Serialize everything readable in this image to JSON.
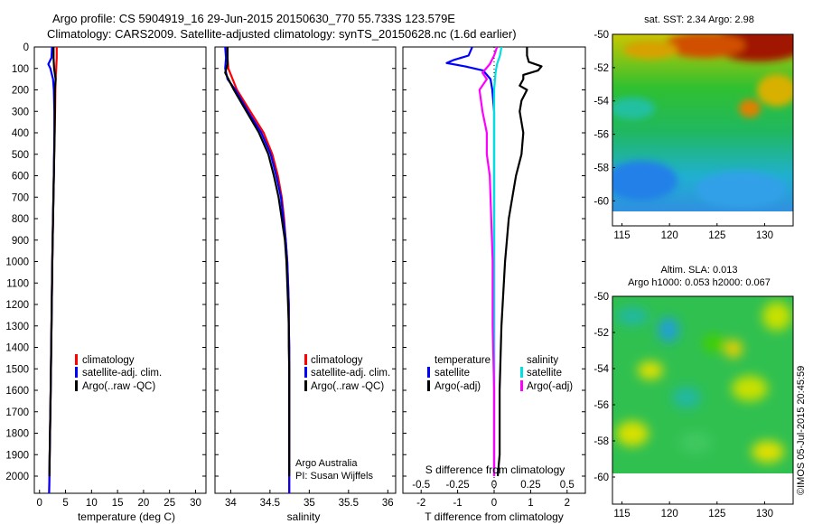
{
  "header": {
    "title_line1": "Argo profile: CS 5904919_16 29-Jun-2015 20150630_770 55.733S 123.579E",
    "title_line2": "Climatology: CARS2009. Satellite-adjusted climatology: synTS_20150628.nc (1.6d earlier)"
  },
  "credits": {
    "line1": "Argo Australia",
    "line2": "PI: Susan Wijffels",
    "stamp": "©IMOS 05-Jul-2015 20:45:59"
  },
  "colors": {
    "climatology": "#ff0000",
    "satellite": "#0000ff",
    "argo": "#000000",
    "satellite_salinity": "#00e0e0",
    "argo_salinity_diff": "#ff00ff"
  },
  "chart_data": [
    {
      "id": "temperature",
      "type": "line",
      "xlabel": "temperature (deg C)",
      "ylabel": "",
      "xlim": [
        -1,
        32
      ],
      "ylim": [
        2080,
        0
      ],
      "xticks": [
        0,
        5,
        10,
        15,
        20,
        25,
        30
      ],
      "yticks": [
        0,
        100,
        200,
        300,
        400,
        500,
        600,
        700,
        800,
        900,
        1000,
        1100,
        1200,
        1300,
        1400,
        1500,
        1600,
        1700,
        1800,
        1900,
        2000
      ],
      "legend": [
        "climatology",
        "satellite-adj. clim.",
        "Argo(..raw -QC)"
      ],
      "series": [
        {
          "name": "climatology",
          "color": "#ff0000",
          "depth": [
            0,
            50,
            100,
            150,
            200,
            300,
            400,
            600,
            800,
            1000,
            1300,
            1600,
            1900,
            2000,
            2080
          ],
          "values": [
            3.3,
            3.3,
            3.2,
            3.1,
            3.05,
            3.0,
            2.9,
            2.75,
            2.6,
            2.45,
            2.3,
            2.15,
            1.95,
            1.9,
            1.85
          ]
        },
        {
          "name": "satellite-adj. clim.",
          "color": "#0000ff",
          "depth": [
            0,
            50,
            80,
            100,
            150,
            200,
            300,
            400,
            600,
            800,
            1000,
            1300,
            1600,
            1900,
            2000,
            2080
          ],
          "values": [
            2.4,
            2.3,
            1.7,
            2.1,
            2.6,
            2.75,
            2.85,
            2.85,
            2.75,
            2.6,
            2.45,
            2.3,
            2.15,
            1.95,
            1.9,
            1.85
          ]
        },
        {
          "name": "Argo(..raw -QC)",
          "color": "#000000",
          "depth": [
            0,
            50,
            100,
            150,
            180,
            200,
            300,
            400,
            600,
            800,
            1000,
            1300,
            1600,
            1900,
            2000
          ],
          "values": [
            2.7,
            2.7,
            2.8,
            3.1,
            3.0,
            2.95,
            2.95,
            2.9,
            2.75,
            2.6,
            2.45,
            2.3,
            2.15,
            1.95,
            1.9
          ]
        }
      ]
    },
    {
      "id": "salinity",
      "type": "line",
      "xlabel": "salinity",
      "ylabel": "",
      "xlim": [
        33.8,
        36.1
      ],
      "ylim": [
        2080,
        0
      ],
      "xticks": [
        34,
        34.5,
        35,
        35.5,
        36
      ],
      "legend": [
        "climatology",
        "satellite-adj. clim.",
        "Argo(..raw -QC)"
      ],
      "series": [
        {
          "name": "climatology",
          "color": "#ff0000",
          "depth": [
            0,
            100,
            200,
            300,
            400,
            500,
            600,
            700,
            800,
            900,
            1000,
            1100,
            1200,
            1300,
            1400,
            1500,
            1700,
            2000,
            2080
          ],
          "values": [
            33.95,
            33.97,
            34.08,
            34.25,
            34.42,
            34.53,
            34.6,
            34.65,
            34.68,
            34.7,
            34.72,
            34.73,
            34.74,
            34.74,
            34.745,
            34.745,
            34.745,
            34.745,
            34.745
          ]
        },
        {
          "name": "satellite-adj. clim.",
          "color": "#0000ff",
          "depth": [
            0,
            50,
            100,
            150,
            200,
            300,
            400,
            500,
            600,
            700,
            800,
            900,
            1000,
            1100,
            1200,
            1300,
            1400,
            1500,
            1700,
            2000,
            2080
          ],
          "values": [
            33.93,
            33.94,
            33.93,
            33.96,
            34.06,
            34.22,
            34.39,
            34.51,
            34.58,
            34.64,
            34.67,
            34.7,
            34.72,
            34.73,
            34.74,
            34.74,
            34.745,
            34.745,
            34.745,
            34.745,
            34.745
          ]
        },
        {
          "name": "Argo(..raw -QC)",
          "color": "#000000",
          "depth": [
            0,
            80,
            120,
            200,
            300,
            400,
            500,
            600,
            700,
            800,
            900,
            1000,
            1100,
            1200,
            1300,
            1400,
            1500,
            1700,
            2000
          ],
          "values": [
            33.96,
            33.96,
            33.93,
            34.04,
            34.2,
            34.36,
            34.48,
            34.55,
            34.61,
            34.65,
            34.69,
            34.71,
            34.72,
            34.73,
            34.74,
            34.74,
            34.745,
            34.745,
            34.745
          ]
        }
      ]
    },
    {
      "id": "differences",
      "type": "line",
      "xlabel": "T difference from climatology",
      "x2label": "S difference from climatology",
      "xlim": [
        -2.5,
        2.5
      ],
      "x2lim": [
        -0.625,
        0.625
      ],
      "ylim": [
        2080,
        0
      ],
      "xticks": [
        -2,
        -1,
        0,
        1,
        2
      ],
      "x2ticks": [
        -0.5,
        -0.25,
        0,
        0.25,
        0.5
      ],
      "legend_groups": [
        {
          "title": "temperature",
          "items": [
            "satellite",
            "Argo(-adj)"
          ]
        },
        {
          "title": "salinity",
          "items": [
            "satellite",
            "Argo(-adj)"
          ]
        }
      ],
      "series": [
        {
          "name": "temperature satellite",
          "axis": "T",
          "color": "#0000ff",
          "depth": [
            0,
            40,
            60,
            75,
            90,
            110,
            150,
            200,
            300,
            500,
            800,
            1200,
            1600,
            2000
          ],
          "values": [
            -0.6,
            -0.7,
            -1.1,
            -1.3,
            -0.8,
            -0.3,
            -0.1,
            -0.05,
            0,
            0,
            0,
            0,
            0,
            0
          ]
        },
        {
          "name": "temperature Argo(-adj)",
          "axis": "T",
          "color": "#000000",
          "depth": [
            0,
            40,
            70,
            90,
            110,
            130,
            150,
            180,
            200,
            250,
            300,
            400,
            500,
            600,
            800,
            1000,
            1300,
            1600,
            1900,
            2000
          ],
          "values": [
            0.9,
            0.9,
            0.95,
            1.3,
            1.2,
            0.8,
            0.8,
            0.7,
            0.9,
            0.75,
            0.7,
            0.8,
            0.75,
            0.6,
            0.4,
            0.3,
            0.2,
            0.15,
            0.15,
            0.1
          ]
        },
        {
          "name": "salinity satellite",
          "axis": "S",
          "color": "#00e0e0",
          "depth": [
            0,
            40,
            80,
            120,
            200,
            300,
            400,
            500,
            800,
            1200,
            1600,
            2000
          ],
          "values": [
            0.05,
            0.04,
            0.02,
            0.01,
            0,
            0,
            0,
            0,
            0,
            0,
            0,
            0
          ]
        },
        {
          "name": "salinity Argo(-adj)",
          "axis": "S",
          "color": "#ff00ff",
          "depth": [
            0,
            40,
            80,
            120,
            150,
            200,
            300,
            400,
            500,
            600,
            800,
            1000,
            1300,
            1600,
            2000
          ],
          "values": [
            0.02,
            0.0,
            -0.03,
            -0.08,
            -0.05,
            -0.1,
            -0.08,
            -0.05,
            -0.05,
            -0.03,
            -0.02,
            -0.01,
            -0.01,
            0,
            0
          ]
        }
      ]
    },
    {
      "id": "sst_map",
      "type": "heatmap",
      "title": "sat. SST: 2.34 Argo: 2.98",
      "xlim": [
        114,
        133
      ],
      "ylim": [
        -61.5,
        -50
      ],
      "xticks": [
        115,
        120,
        125,
        130
      ],
      "yticks": [
        -50,
        -52,
        -54,
        -56,
        -58,
        -60
      ],
      "data_lat_min": -60
    },
    {
      "id": "sla_map",
      "type": "heatmap",
      "title_line1": "Altim. SLA: 0.013",
      "title_line2": "Argo h1000: 0.053 h2000: 0.067",
      "xlim": [
        114,
        133
      ],
      "ylim": [
        -61.5,
        -50
      ],
      "xticks": [
        115,
        120,
        125,
        130
      ],
      "yticks": [
        -50,
        -52,
        -54,
        -56,
        -58,
        -60
      ],
      "data_lat_min": -60
    }
  ]
}
